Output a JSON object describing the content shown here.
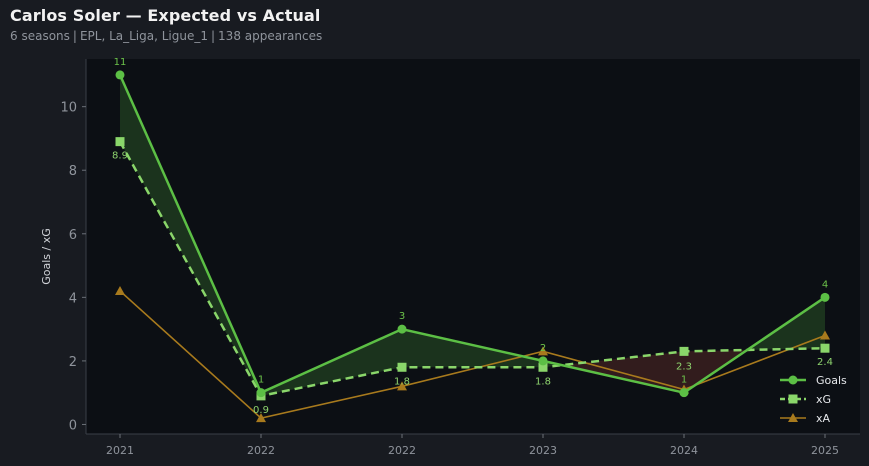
{
  "header": {
    "title": "Carlos Soler — Expected vs Actual",
    "subtitle_parts": [
      "6 seasons",
      "EPL, La_Liga, Ligue_1",
      "138 appearances"
    ],
    "separator": "|"
  },
  "colors": {
    "background": "#181b21",
    "plot_background": "#0c0f14",
    "goals": "#5cbf45",
    "xg": "#8ad66a",
    "xa": "#a87a1d",
    "overperform_fill": "#1f3a1f",
    "underperform_fill": "#3a1e1e",
    "label_goals": "#6cc24a",
    "label_xg": "#8ed46e"
  },
  "chart_data": {
    "type": "line",
    "title": "Carlos Soler — Expected vs Actual",
    "xlabel": "",
    "ylabel": "Goals / xG",
    "categories": [
      "2021",
      "2022",
      "2022",
      "2023",
      "2024",
      "2025"
    ],
    "ylim": [
      -0.3,
      11.5
    ],
    "yticks": [
      0,
      2,
      4,
      6,
      8,
      10
    ],
    "grid": false,
    "legend_position": "bottom-right",
    "series": [
      {
        "name": "Goals",
        "values": [
          11,
          1,
          3,
          2,
          1,
          4
        ],
        "labels": [
          "11",
          "1",
          "3",
          "2",
          "1",
          "4"
        ]
      },
      {
        "name": "xG",
        "values": [
          8.9,
          0.9,
          1.8,
          1.8,
          2.3,
          2.4
        ],
        "labels": [
          "8.9",
          "0.9",
          "1.8",
          "1.8",
          "2.3",
          "2.4"
        ]
      },
      {
        "name": "xA",
        "values": [
          4.2,
          0.2,
          1.2,
          2.3,
          1.1,
          2.8
        ]
      }
    ]
  }
}
